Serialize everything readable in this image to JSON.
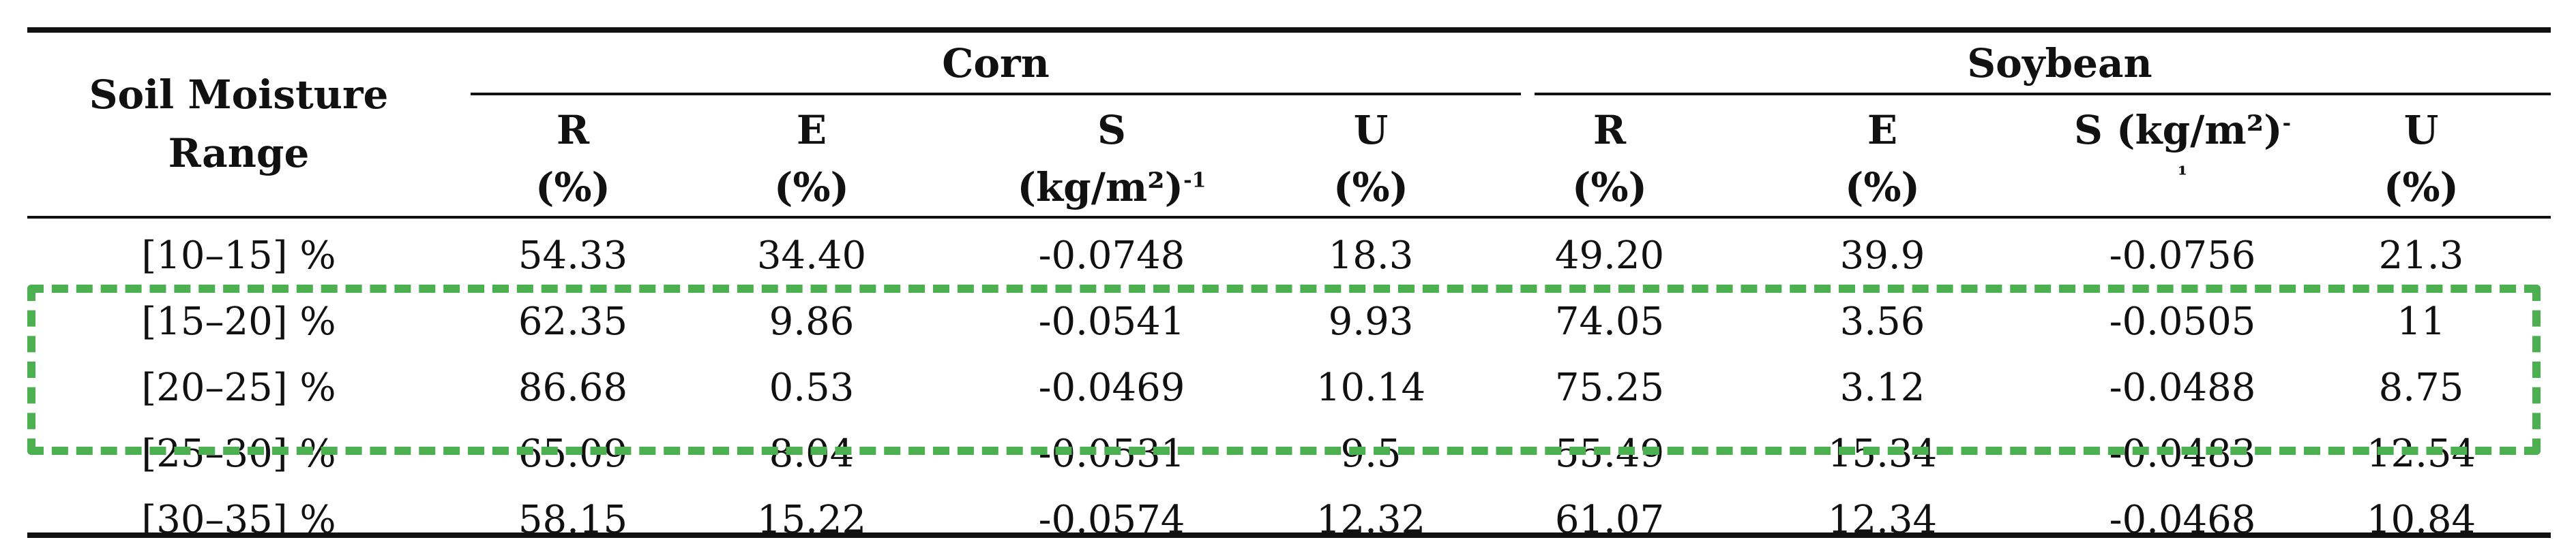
{
  "header": {
    "row_label_line1": "Soil Moisture",
    "row_label_line2": "Range",
    "groups": [
      {
        "name": "Corn"
      },
      {
        "name": "Soybean"
      }
    ],
    "columns": [
      {
        "line1": "R",
        "line2": "(%)"
      },
      {
        "line1": "E",
        "line2": "(%)"
      },
      {
        "line1": "S",
        "line2": "(kg/m²)",
        "line2_sup": "-1"
      },
      {
        "line1": "U",
        "line2": "(%)"
      },
      {
        "line1": "R",
        "line2": "(%)"
      },
      {
        "line1": "E",
        "line2": "(%)"
      },
      {
        "line1": "S (kg/m²)",
        "line1_sup": "-",
        "line2": "¹"
      },
      {
        "line1": "U",
        "line2": "(%)"
      }
    ]
  },
  "rows": [
    {
      "range": "[10–15] %",
      "values": [
        "54.33",
        "34.40",
        "-0.0748",
        "18.3",
        "49.20",
        "39.9",
        "-0.0756",
        "21.3"
      ]
    },
    {
      "range": "[15–20] %",
      "values": [
        "62.35",
        "9.86",
        "-0.0541",
        "9.93",
        "74.05",
        "3.56",
        "-0.0505",
        "11"
      ]
    },
    {
      "range": "[20–25] %",
      "values": [
        "86.68",
        "0.53",
        "-0.0469",
        "10.14",
        "75.25",
        "3.12",
        "-0.0488",
        "8.75"
      ]
    },
    {
      "range": "[25–30] %",
      "values": [
        "65.09",
        "8.04",
        "-0.0531",
        "9.5",
        "55.49",
        "15.34",
        "-0.0483",
        "12.54"
      ]
    },
    {
      "range": "[30–35] %",
      "values": [
        "58.15",
        "15.22",
        "-0.0574",
        "12.32",
        "61.07",
        "12.34",
        "-0.0468",
        "10.84"
      ]
    }
  ],
  "highlight_color": "#4caf50"
}
